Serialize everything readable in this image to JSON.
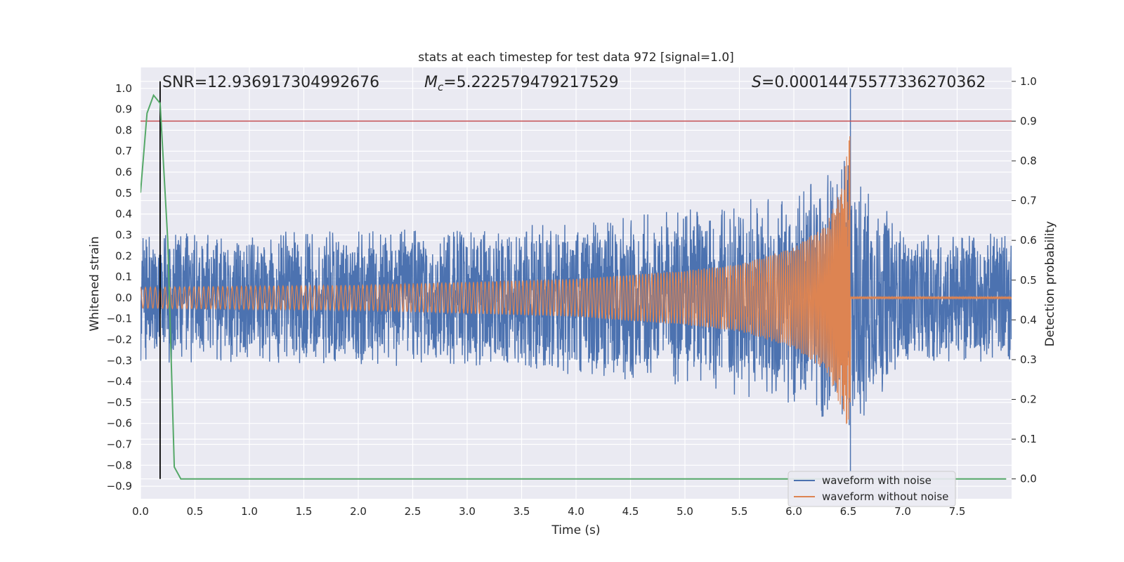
{
  "chart_data": {
    "type": "line",
    "title": "stats at each timestep for test data 972 [signal=1.0]",
    "xlabel": "Time (s)",
    "ylabel_left": "Whitened strain",
    "ylabel_right": "Detection probability",
    "xlim": [
      0.0,
      8.0
    ],
    "ylim_left": [
      -0.96,
      1.1
    ],
    "ylim_right": [
      -0.05,
      1.035
    ],
    "x_ticks": [
      "0.0",
      "0.5",
      "1.0",
      "1.5",
      "2.0",
      "2.5",
      "3.0",
      "3.5",
      "4.0",
      "4.5",
      "5.0",
      "5.5",
      "6.0",
      "6.5",
      "7.0",
      "7.5"
    ],
    "y_ticks_left": [
      "1.0",
      "0.9",
      "0.8",
      "0.7",
      "0.6",
      "0.5",
      "0.4",
      "0.3",
      "0.2",
      "0.1",
      "0.0",
      "−0.1",
      "−0.2",
      "−0.3",
      "−0.4",
      "−0.5",
      "−0.6",
      "−0.7",
      "−0.8",
      "−0.9"
    ],
    "y_ticks_right": [
      "1.0",
      "0.9",
      "0.8",
      "0.7",
      "0.6",
      "0.5",
      "0.4",
      "0.3",
      "0.2",
      "0.1",
      "0.0"
    ],
    "annotations": {
      "snr": "SNR=12.936917304992676",
      "mc_symbol": "M",
      "mc_sub": "c",
      "mc_value": "=5.222579479217529",
      "s_symbol": "S",
      "s_value": "=0.00014475577336270362"
    },
    "threshold_right": 0.9,
    "detection_marker_time": 0.18,
    "merger_time": 6.52,
    "series": [
      {
        "name": "waveform with noise",
        "color": "#4c72b0",
        "axis": "left",
        "noise_envelope": [
          [
            0.0,
            0.28
          ],
          [
            3.0,
            0.3
          ],
          [
            5.0,
            0.38
          ],
          [
            6.0,
            0.47
          ],
          [
            6.4,
            0.55
          ],
          [
            6.5,
            0.62
          ],
          [
            7.0,
            0.28
          ],
          [
            8.0,
            0.28
          ]
        ],
        "peak_at_merger": [
          -0.83,
          1.0
        ]
      },
      {
        "name": "waveform without noise",
        "color": "#dd8452",
        "axis": "left",
        "chirp_amplitude": [
          [
            0.0,
            0.05
          ],
          [
            2.0,
            0.06
          ],
          [
            4.0,
            0.09
          ],
          [
            5.0,
            0.13
          ],
          [
            5.5,
            0.16
          ],
          [
            6.0,
            0.24
          ],
          [
            6.3,
            0.35
          ],
          [
            6.45,
            0.55
          ],
          [
            6.52,
            0.8
          ]
        ],
        "post_merger_amplitude": 0.004
      },
      {
        "name": "detection probability",
        "color": "#55a868",
        "axis": "right",
        "x": [
          0.0,
          0.06,
          0.12,
          0.18,
          0.25,
          0.31,
          0.37,
          7.95
        ],
        "y": [
          0.72,
          0.92,
          0.965,
          0.945,
          0.6,
          0.03,
          0.0,
          0.0
        ]
      }
    ],
    "legend": {
      "position": "lower-right",
      "entries": [
        "waveform with noise",
        "waveform without noise"
      ]
    },
    "colors": {
      "background": "#eaeaf2",
      "grid": "#ffffff",
      "threshold": "#c44e52",
      "marker": "#000000"
    }
  }
}
